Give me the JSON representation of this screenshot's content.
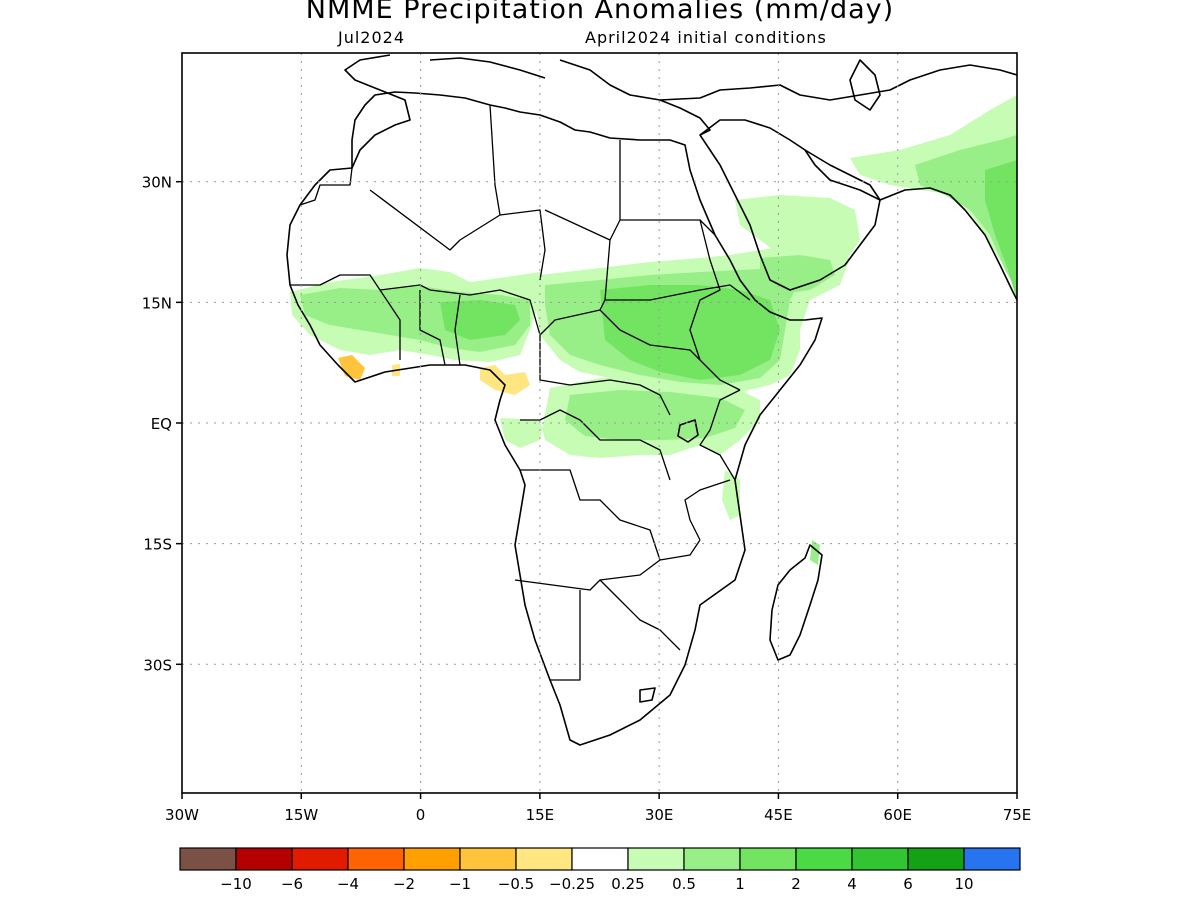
{
  "title": "NMME Precipitation Anomalies (mm/day)",
  "subtitle_left": "Jul2024",
  "subtitle_right": "April2024 initial conditions",
  "map": {
    "lon_range": [
      -30,
      75
    ],
    "lat_range": [
      -46,
      46
    ],
    "lat_ticks": [
      {
        "value": 30,
        "label": "30N"
      },
      {
        "value": 15,
        "label": "15N"
      },
      {
        "value": 0,
        "label": "EQ"
      },
      {
        "value": -15,
        "label": "15S"
      },
      {
        "value": -30,
        "label": "30S"
      }
    ],
    "lon_ticks": [
      {
        "value": -30,
        "label": "30W"
      },
      {
        "value": -15,
        "label": "15W"
      },
      {
        "value": 0,
        "label": "0"
      },
      {
        "value": 15,
        "label": "15E"
      },
      {
        "value": 30,
        "label": "30E"
      },
      {
        "value": 45,
        "label": "45E"
      },
      {
        "value": 60,
        "label": "60E"
      },
      {
        "value": 75,
        "label": "75E"
      }
    ],
    "grid": "dotted"
  },
  "colorbar": {
    "colors": [
      "#7b5045",
      "#b40000",
      "#e01b00",
      "#ff6400",
      "#ffa000",
      "#ffc43c",
      "#ffe680",
      "#ffffff",
      "#c6fcb4",
      "#98ef87",
      "#72e462",
      "#4ada43",
      "#31c631",
      "#13a215",
      "#2874f0"
    ],
    "labels": [
      "−10",
      "−6",
      "−4",
      "−2",
      "−1",
      "−0.5",
      "−0.25",
      "0.25",
      "0.5",
      "1",
      "2",
      "4",
      "6",
      "10"
    ]
  }
}
